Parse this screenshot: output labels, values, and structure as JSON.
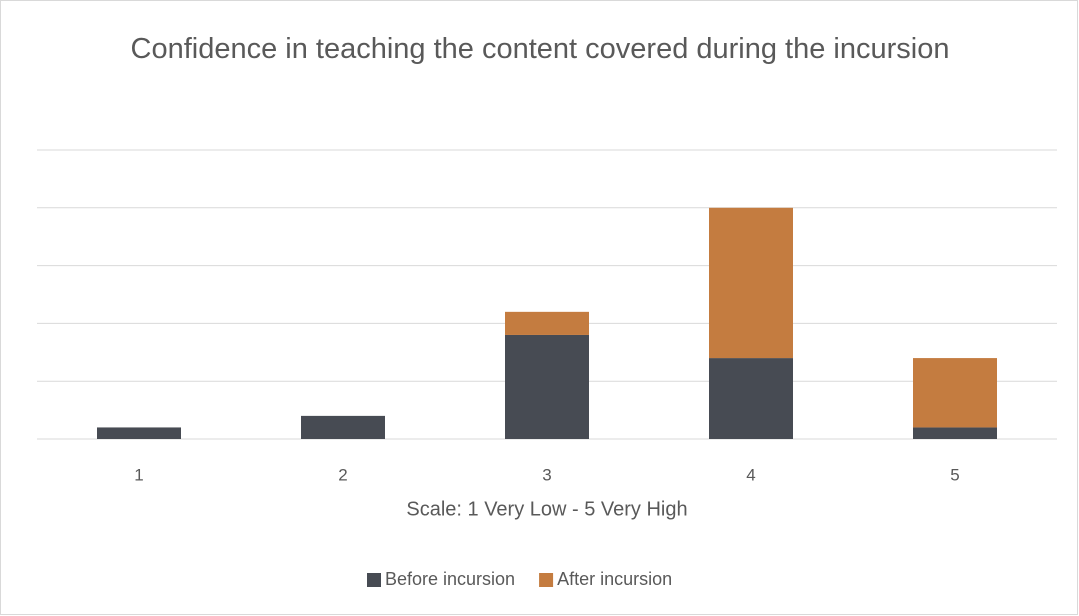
{
  "chart_data": {
    "type": "bar",
    "stacked": true,
    "title": "Confidence in teaching the content covered during the incursion",
    "x_label": "Scale: 1 Very Low - 5 Very High",
    "categories": [
      "1",
      "2",
      "3",
      "4",
      "5"
    ],
    "series": [
      {
        "name": "Before incursion",
        "color": "#474b53",
        "values": [
          1,
          2,
          9,
          7,
          1
        ]
      },
      {
        "name": "After incursion",
        "color": "#c47c40",
        "values": [
          0,
          0,
          2,
          13,
          6
        ]
      }
    ],
    "ylim": [
      0,
      25
    ],
    "yticks": [
      0,
      5,
      10,
      15,
      20,
      25
    ],
    "grid": true,
    "legend": "bottom"
  }
}
